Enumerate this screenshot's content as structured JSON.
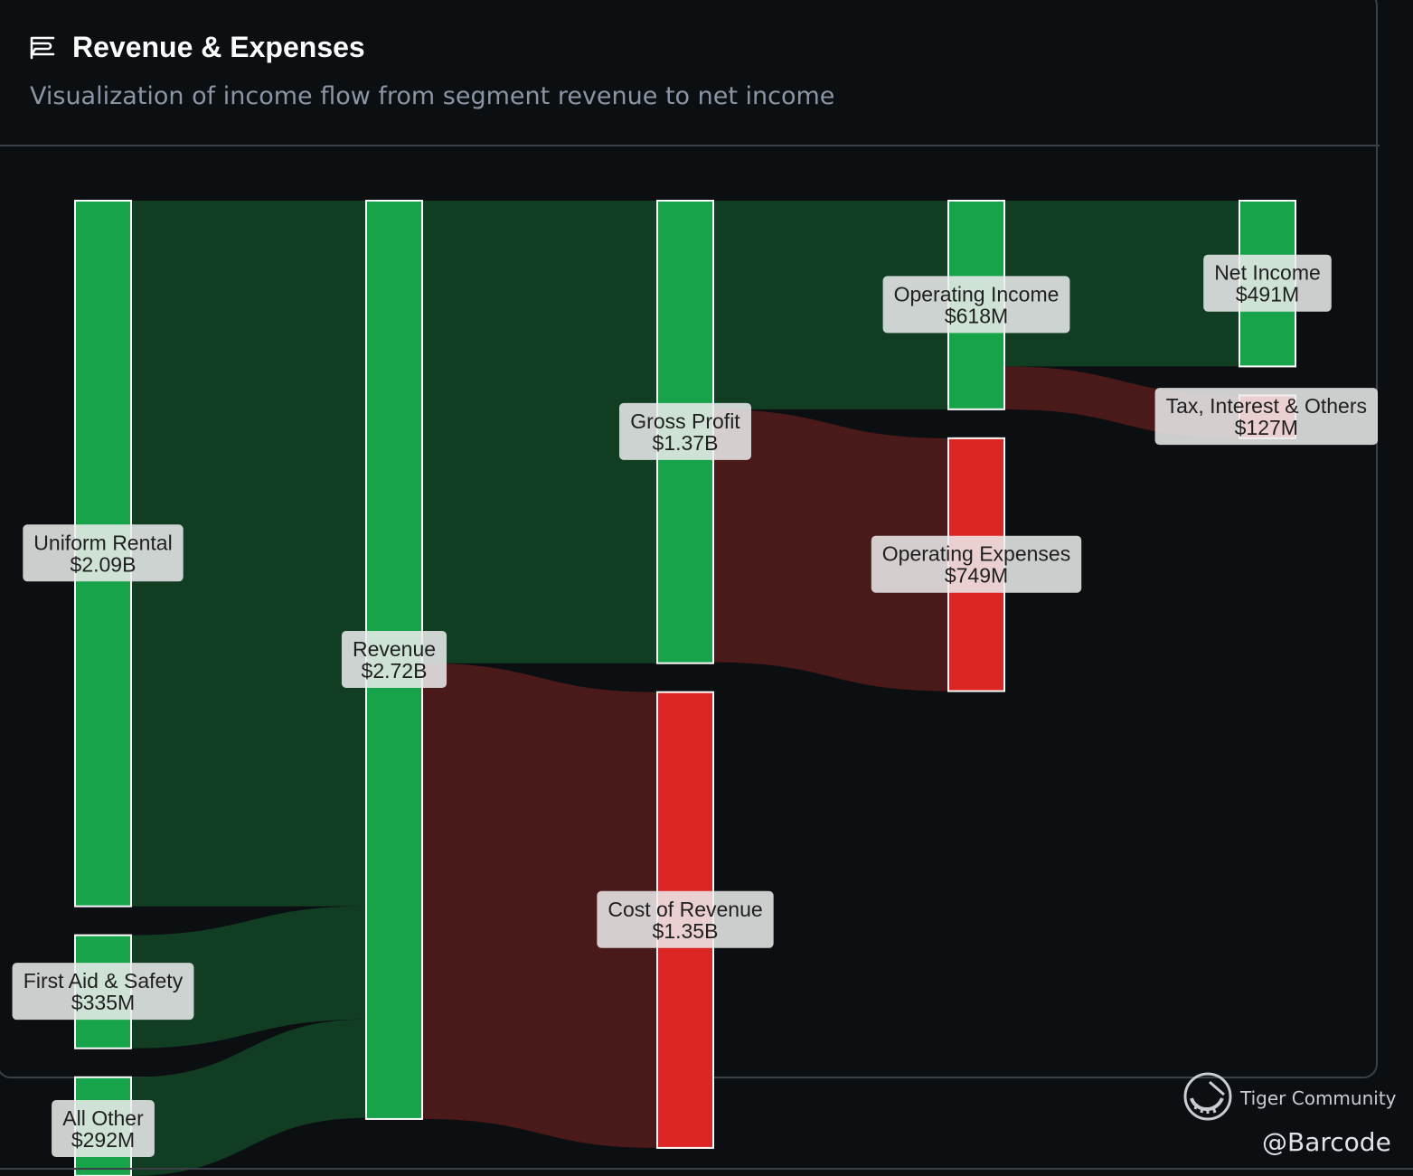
{
  "header": {
    "title": "Revenue & Expenses",
    "subtitle": "Visualization of income flow from segment revenue to net income"
  },
  "watermark": {
    "name": "Tiger Community",
    "handle": "@Barcode"
  },
  "colors": {
    "positive_node": "#16a34a",
    "negative_node": "#dc2626",
    "positive_link": "#113d23",
    "negative_link": "#4a1919",
    "background": "#0c0f11"
  },
  "chart_data": {
    "type": "sankey",
    "unit": "USD",
    "nodes": [
      {
        "id": "uniform_rental",
        "name": "Uniform Rental",
        "value_label": "$2.09B",
        "value": 2.09,
        "column": 0,
        "kind": "positive"
      },
      {
        "id": "first_aid",
        "name": "First Aid & Safety",
        "value_label": "$335M",
        "value": 0.335,
        "column": 0,
        "kind": "positive"
      },
      {
        "id": "all_other",
        "name": "All Other",
        "value_label": "$292M",
        "value": 0.292,
        "column": 0,
        "kind": "positive"
      },
      {
        "id": "revenue",
        "name": "Revenue",
        "value_label": "$2.72B",
        "value": 2.72,
        "column": 1,
        "kind": "positive"
      },
      {
        "id": "gross_profit",
        "name": "Gross Profit",
        "value_label": "$1.37B",
        "value": 1.37,
        "column": 2,
        "kind": "positive"
      },
      {
        "id": "cost_of_revenue",
        "name": "Cost of Revenue",
        "value_label": "$1.35B",
        "value": 1.35,
        "column": 2,
        "kind": "negative"
      },
      {
        "id": "operating_income",
        "name": "Operating Income",
        "value_label": "$618M",
        "value": 0.618,
        "column": 3,
        "kind": "positive"
      },
      {
        "id": "operating_expenses",
        "name": "Operating Expenses",
        "value_label": "$749M",
        "value": 0.749,
        "column": 3,
        "kind": "negative"
      },
      {
        "id": "net_income",
        "name": "Net Income",
        "value_label": "$491M",
        "value": 0.491,
        "column": 4,
        "kind": "positive"
      },
      {
        "id": "tax_other",
        "name": "Tax, Interest & Others",
        "value_label": "$127M",
        "value": 0.127,
        "column": 4,
        "kind": "negative"
      }
    ],
    "links": [
      {
        "source": "uniform_rental",
        "target": "revenue",
        "value": 2.09,
        "kind": "positive"
      },
      {
        "source": "first_aid",
        "target": "revenue",
        "value": 0.335,
        "kind": "positive"
      },
      {
        "source": "all_other",
        "target": "revenue",
        "value": 0.292,
        "kind": "positive"
      },
      {
        "source": "revenue",
        "target": "gross_profit",
        "value": 1.37,
        "kind": "positive"
      },
      {
        "source": "revenue",
        "target": "cost_of_revenue",
        "value": 1.35,
        "kind": "negative"
      },
      {
        "source": "gross_profit",
        "target": "operating_income",
        "value": 0.618,
        "kind": "positive"
      },
      {
        "source": "gross_profit",
        "target": "operating_expenses",
        "value": 0.749,
        "kind": "negative"
      },
      {
        "source": "operating_income",
        "target": "net_income",
        "value": 0.491,
        "kind": "positive"
      },
      {
        "source": "operating_income",
        "target": "tax_other",
        "value": 0.127,
        "kind": "negative"
      }
    ]
  }
}
